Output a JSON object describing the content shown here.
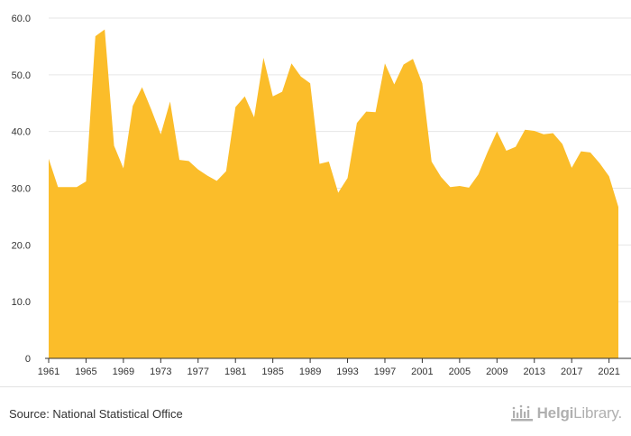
{
  "source_text": "Source: National Statistical Office",
  "brand": {
    "name_part1": "Helgi",
    "name_part2": "Library."
  },
  "colors": {
    "area": "#fbbd2a",
    "axis": "#333333",
    "grid": "#e6e6e6"
  },
  "chart_data": {
    "type": "area",
    "title": "",
    "xlabel": "",
    "ylabel": "",
    "xlim": [
      1961,
      2022
    ],
    "ylim": [
      0,
      60
    ],
    "yticks": [
      0,
      10,
      20,
      30,
      40,
      50,
      60
    ],
    "ytick_labels": [
      "0",
      "10.0",
      "20.0",
      "30.0",
      "40.0",
      "50.0",
      "60.0"
    ],
    "xticks": [
      1961,
      1965,
      1969,
      1973,
      1977,
      1981,
      1985,
      1989,
      1993,
      1997,
      2001,
      2005,
      2009,
      2013,
      2017,
      2021
    ],
    "grid": "horizontal",
    "legend": "none",
    "x": [
      1961,
      1962,
      1963,
      1964,
      1965,
      1966,
      1967,
      1968,
      1969,
      1970,
      1971,
      1972,
      1973,
      1974,
      1975,
      1976,
      1977,
      1978,
      1979,
      1980,
      1981,
      1982,
      1983,
      1984,
      1985,
      1986,
      1987,
      1988,
      1989,
      1990,
      1991,
      1992,
      1993,
      1994,
      1995,
      1996,
      1997,
      1998,
      1999,
      2000,
      2001,
      2002,
      2003,
      2004,
      2005,
      2006,
      2007,
      2008,
      2009,
      2010,
      2011,
      2012,
      2013,
      2014,
      2015,
      2016,
      2017,
      2018,
      2019,
      2020,
      2021,
      2022
    ],
    "values": [
      35.2,
      30.2,
      30.2,
      30.2,
      31.2,
      56.8,
      58.0,
      37.5,
      33.5,
      44.5,
      47.8,
      43.8,
      39.5,
      45.3,
      35.0,
      34.8,
      33.3,
      32.2,
      31.3,
      33.0,
      44.3,
      46.2,
      42.5,
      53.0,
      46.2,
      47.0,
      52.0,
      49.7,
      48.5,
      34.3,
      34.7,
      29.2,
      31.8,
      41.5,
      43.5,
      43.4,
      52.0,
      48.3,
      51.8,
      52.8,
      48.5,
      34.7,
      32.0,
      30.2,
      30.4,
      30.1,
      32.4,
      36.4,
      40.0,
      36.6,
      37.3,
      40.3,
      40.1,
      39.5,
      39.7,
      37.8,
      33.6,
      36.5,
      36.3,
      34.4,
      32.1,
      26.7
    ]
  }
}
